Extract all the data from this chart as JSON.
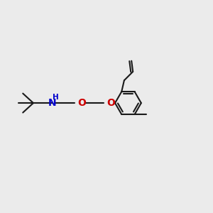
{
  "bg_color": "#ebebeb",
  "bond_color": "#1a1a1a",
  "nitrogen_color": "#0000cc",
  "oxygen_color": "#cc0000",
  "line_width": 1.5,
  "figsize": [
    3.0,
    3.0
  ],
  "dpi": 100,
  "xlim": [
    0,
    12
  ],
  "ylim": [
    0,
    10
  ]
}
